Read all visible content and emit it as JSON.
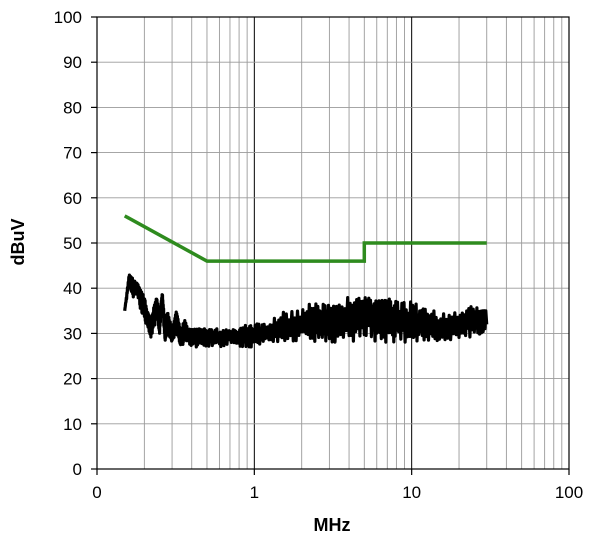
{
  "chart_data": {
    "type": "line",
    "title": "",
    "xlabel": "MHz",
    "ylabel": "dBuV",
    "x_scale": "log",
    "xlim": [
      0.1,
      100
    ],
    "ylim": [
      0,
      100
    ],
    "grid": true,
    "legend": "none",
    "x_ticks": [
      {
        "value": 0.1,
        "label": "0"
      },
      {
        "value": 1,
        "label": "1"
      },
      {
        "value": 10,
        "label": "10"
      },
      {
        "value": 100,
        "label": "100"
      }
    ],
    "y_ticks": [
      0,
      10,
      20,
      30,
      40,
      50,
      60,
      70,
      80,
      90,
      100
    ],
    "series": [
      {
        "color": "#2e8b1e",
        "x": [
          0.15,
          0.5,
          0.5,
          5,
          5,
          30
        ],
        "y": [
          56,
          46,
          46,
          46,
          50,
          50
        ]
      },
      {
        "color": "#000000",
        "x": [
          0.15,
          0.16,
          0.17,
          0.18,
          0.19,
          0.2,
          0.21,
          0.22,
          0.23,
          0.24,
          0.25,
          0.26,
          0.27,
          0.28,
          0.29,
          0.3,
          0.32,
          0.34,
          0.36,
          0.38,
          0.4,
          0.45,
          0.5,
          0.6,
          0.7,
          0.8,
          0.9,
          1,
          1.2,
          1.5,
          2,
          2.5,
          3,
          4,
          5,
          6,
          7,
          8,
          10,
          12,
          15,
          20,
          25,
          30
        ],
        "y": [
          35,
          43,
          40,
          41,
          38,
          36,
          33,
          31,
          34,
          37,
          32,
          39,
          30,
          33,
          31,
          30,
          34,
          29,
          31,
          30,
          29,
          30,
          30,
          29,
          30,
          29,
          30,
          29,
          30,
          31,
          32,
          33,
          33,
          34,
          35,
          34,
          33,
          33,
          32,
          32,
          31,
          32,
          33,
          32
        ],
        "band_low": [
          35,
          41,
          38,
          39,
          35,
          33,
          31,
          29,
          31,
          34,
          30,
          36,
          28,
          30,
          29,
          28,
          30,
          27,
          28,
          28,
          27,
          27,
          27,
          27,
          27,
          27,
          27,
          27,
          28,
          28,
          28,
          28,
          28,
          28,
          29,
          28,
          28,
          28,
          28,
          28,
          28,
          29,
          29,
          30
        ],
        "band_high": [
          35,
          43,
          42,
          41,
          40,
          38,
          35,
          33,
          36,
          38,
          34,
          39,
          32,
          35,
          33,
          31,
          35,
          31,
          33,
          31,
          31,
          31,
          31,
          31,
          31,
          31,
          32,
          32,
          33,
          35,
          36,
          37,
          37,
          38,
          39,
          38,
          38,
          37,
          37,
          36,
          35,
          36,
          36,
          35
        ]
      }
    ]
  }
}
